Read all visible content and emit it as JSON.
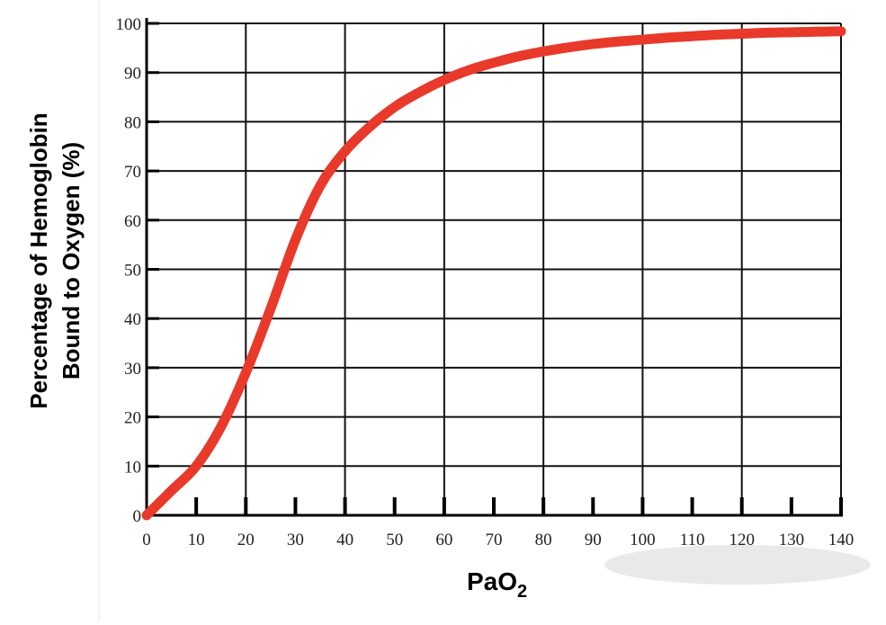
{
  "chart_data": {
    "type": "line",
    "title": "",
    "xlabel": "PaO",
    "xlabel_subscript": "2",
    "ylabel_line1": "Percentage of Hemoglobin",
    "ylabel_line2": "Bound to Oxygen (%)",
    "xlim": [
      0,
      140
    ],
    "ylim": [
      0,
      100
    ],
    "x_ticks": [
      0,
      10,
      20,
      30,
      40,
      50,
      60,
      70,
      80,
      90,
      100,
      110,
      120,
      130,
      140
    ],
    "y_ticks": [
      0,
      10,
      20,
      30,
      40,
      50,
      60,
      70,
      80,
      90,
      100
    ],
    "grid": true,
    "legend": "none",
    "series": [
      {
        "color": "#e8392a",
        "x": [
          0,
          5,
          10,
          15,
          20,
          25,
          30,
          35,
          40,
          45,
          50,
          55,
          60,
          65,
          70,
          75,
          80,
          85,
          90,
          95,
          100,
          105,
          110,
          115,
          120,
          125,
          130,
          135,
          140
        ],
        "y": [
          0,
          5,
          10,
          18,
          29,
          42,
          56,
          67,
          74,
          79,
          83,
          86,
          88.5,
          90.5,
          92,
          93.3,
          94.3,
          95.1,
          95.8,
          96.3,
          96.7,
          97.1,
          97.4,
          97.7,
          97.9,
          98.1,
          98.2,
          98.3,
          98.4
        ]
      }
    ]
  }
}
